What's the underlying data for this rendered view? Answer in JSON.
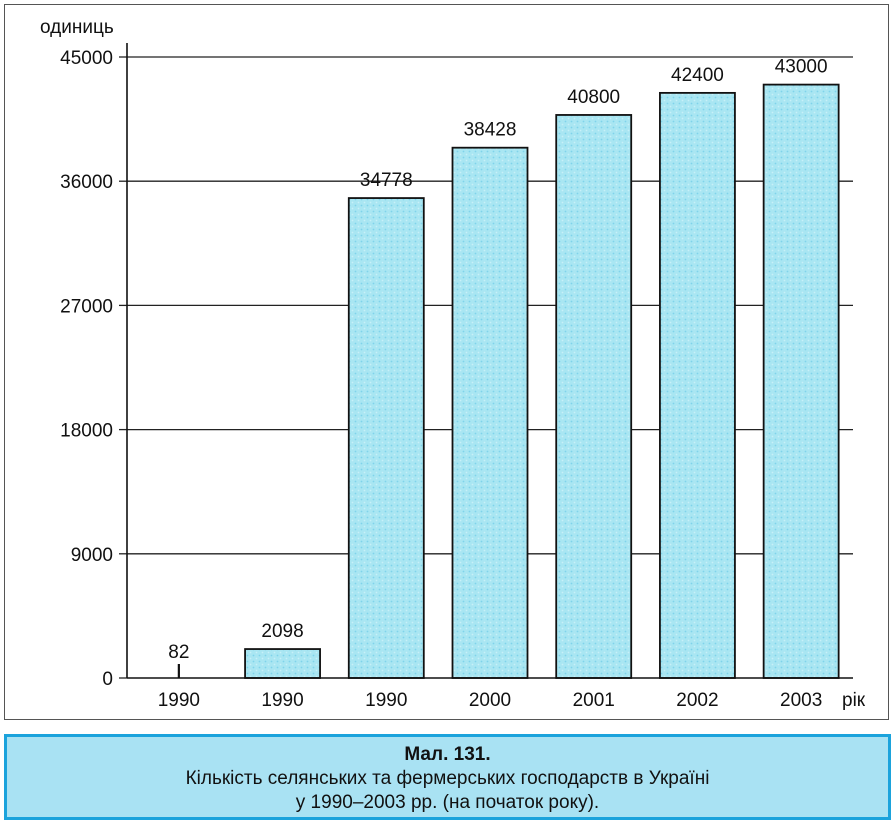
{
  "chart_data": {
    "type": "bar",
    "ylabel": "одиниць",
    "xlabel": "рік",
    "categories": [
      "1990",
      "1990",
      "1990",
      "2000",
      "2001",
      "2002",
      "2003"
    ],
    "values": [
      82,
      2098,
      34778,
      38428,
      40800,
      42400,
      43000
    ],
    "value_labels": [
      "82",
      "2098",
      "34778",
      "38428",
      "40800",
      "42400",
      "43000"
    ],
    "yticks": [
      0,
      9000,
      18000,
      27000,
      36000,
      45000
    ],
    "ytick_labels": [
      "0",
      "9000",
      "18000",
      "27000",
      "36000",
      "45000"
    ],
    "ylim": [
      0,
      45000
    ],
    "grid": true,
    "bar_color": "#a9e6f2"
  },
  "caption": {
    "title": "Мал. 131.",
    "line1": "Кількість селянських та фермерських господарств в Україні",
    "line2": "у 1990–2003 рр. (на початок року)."
  }
}
